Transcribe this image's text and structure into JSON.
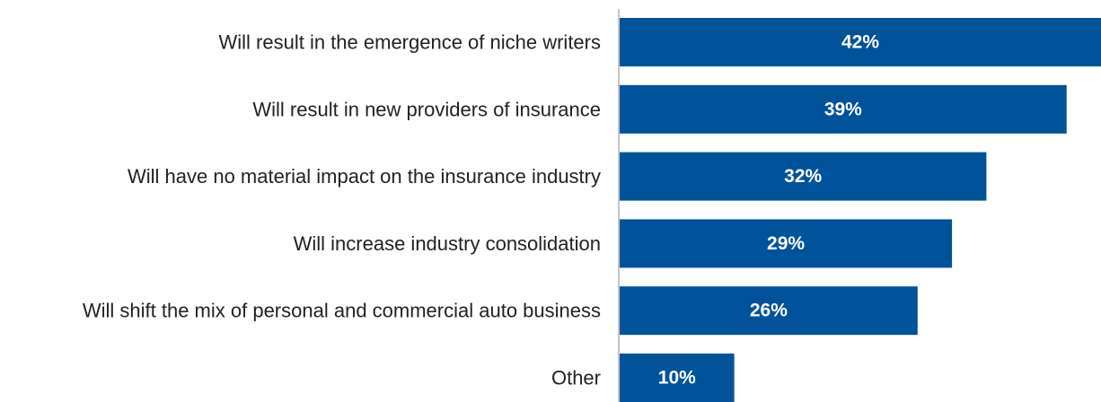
{
  "chart_data": {
    "type": "bar",
    "orientation": "horizontal",
    "categories": [
      "Will result in the emergence of niche writers",
      "Will result in new providers of insurance",
      "Will have no material impact on the insurance industry",
      "Will increase industry consolidation",
      "Will shift the mix of personal and commercial auto business",
      "Other"
    ],
    "values": [
      42,
      39,
      32,
      29,
      26,
      10
    ],
    "value_labels": [
      "42%",
      "39%",
      "32%",
      "29%",
      "26%",
      "10%"
    ],
    "xlim": [
      0,
      42
    ],
    "grid": false,
    "legend": "none",
    "bar_color": "#00529b",
    "axis_color": "#888888"
  }
}
